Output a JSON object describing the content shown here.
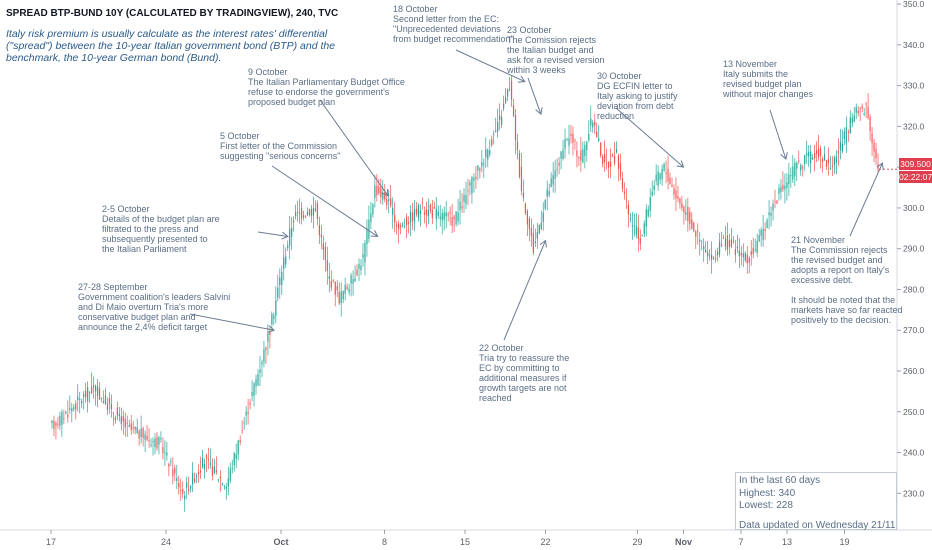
{
  "header": {
    "title": "SPREAD BTP-BUND 10Y (CALCULATED BY TRADINGVIEW), 240, TVC"
  },
  "description": "Italy risk premium is usually calculate as the interest rates' differential (\"spread\") between the 10-year Italian government bond (BTP) and the benchmark, the 10-year German bond (Bund).",
  "price_tag": {
    "price": "309.500",
    "countdown": "02:22:07",
    "color": "#e03e4e"
  },
  "stats": {
    "line1": "In the last 60 days",
    "line2": "Highest: 340",
    "line3": "Lowest: 228",
    "line4": "Data updated on Wednesday 21/11"
  },
  "annotations": [
    {
      "text": "27-28 September\nGovernment coalition's leaders Salvini\nand Di Maio overturn Tria's more\nconservative budget plan and\nannounce the 2,4% deficit target"
    },
    {
      "text": "2-5 October\nDetails of the budget plan are\nfiltrated to the press and\nsubsequently presented to\nthe Italian Parliament"
    },
    {
      "text": "5 October\nFirst letter of the Commission\nsuggesting \"serious concerns\""
    },
    {
      "text": "9 October\nThe Italian Parliamentary Budget Office\nrefuse to endorse the government's\nproposed budget plan"
    },
    {
      "text": "18 October\nSecond letter from the EC:\n\"Unprecedented deviations\nfrom budget recommendation\""
    },
    {
      "text": "23 October\nThe Comission rejects\nthe Italian budget and\nask for a revised version\nwithin 3 weeks"
    },
    {
      "text": "22 October\nTria try to reassure the\nEC by committing to\nadditional measures if\ngrowth targets are not\nreached"
    },
    {
      "text": "30 October\nDG ECFIN letter to\nItaly asking to justify\ndeviation from debt\nreduction"
    },
    {
      "text": "13 November\nItaly submits the\nrevised budget plan\nwithout major changes"
    },
    {
      "text": "21 November\nThe Commission rejects\nthe revised budget and\nadopts a report on Italy's\nexcessive debt.\n\nIt should be noted that the\nmarkets have so far reacted\npositively to the decision."
    }
  ],
  "chart_data": {
    "type": "candlestick",
    "interval": "240",
    "colors": {
      "up": "#26a69a",
      "down": "#ef5350",
      "axis_text": "#5d606b",
      "annotation": "#6b7c93"
    },
    "y_axis": {
      "range": [
        221,
        351
      ],
      "ticks": [
        230,
        240,
        250,
        260,
        270,
        280,
        290,
        300,
        310,
        320,
        330,
        340,
        350
      ]
    },
    "x_axis": {
      "labels": [
        "17",
        "24",
        "Oct",
        "8",
        "15",
        "22",
        "29",
        "Nov",
        "7",
        "13",
        "19"
      ]
    },
    "anchors": [
      {
        "label": "17",
        "x": 0,
        "y": 246
      },
      {
        "x": 4,
        "y": 256
      },
      {
        "x": 7,
        "y": 246
      },
      {
        "label": "24",
        "x": 10,
        "y": 242
      },
      {
        "x": 12,
        "y": 230
      },
      {
        "x": 14,
        "y": 238
      },
      {
        "x": 16,
        "y": 232
      },
      {
        "label": "Oct",
        "x": 20,
        "y": 270
      },
      {
        "x": 21,
        "y": 285
      },
      {
        "x": 22,
        "y": 298
      },
      {
        "x": 24,
        "y": 300
      },
      {
        "x": 25,
        "y": 284
      },
      {
        "x": 26,
        "y": 278
      },
      {
        "x": 27,
        "y": 282
      },
      {
        "x": 28,
        "y": 288
      },
      {
        "label": "8",
        "x": 29,
        "y": 305
      },
      {
        "x": 30,
        "y": 302
      },
      {
        "x": 31,
        "y": 295
      },
      {
        "x": 33,
        "y": 300
      },
      {
        "label": "15",
        "x": 36,
        "y": 297
      },
      {
        "x": 38,
        "y": 308
      },
      {
        "x": 40,
        "y": 320
      },
      {
        "x": 41,
        "y": 330
      },
      {
        "x": 42,
        "y": 305
      },
      {
        "label": "22",
        "x": 43,
        "y": 290
      },
      {
        "x": 44,
        "y": 302
      },
      {
        "x": 45,
        "y": 310
      },
      {
        "x": 46,
        "y": 318
      },
      {
        "x": 47,
        "y": 312
      },
      {
        "x": 48,
        "y": 322
      },
      {
        "x": 49,
        "y": 310
      },
      {
        "x": 50,
        "y": 313
      },
      {
        "label": "29",
        "x": 51,
        "y": 298
      },
      {
        "x": 52,
        "y": 292
      },
      {
        "x": 53,
        "y": 305
      },
      {
        "x": 54,
        "y": 310
      },
      {
        "label": "Nov",
        "x": 55,
        "y": 303
      },
      {
        "x": 56,
        "y": 298
      },
      {
        "x": 57,
        "y": 292
      },
      {
        "x": 58,
        "y": 287
      },
      {
        "x": 59,
        "y": 292
      },
      {
        "label": "7",
        "x": 60,
        "y": 290
      },
      {
        "x": 61,
        "y": 287
      },
      {
        "x": 62,
        "y": 292
      },
      {
        "x": 63,
        "y": 300
      },
      {
        "label": "13",
        "x": 64,
        "y": 305
      },
      {
        "x": 65,
        "y": 310
      },
      {
        "x": 66,
        "y": 312
      },
      {
        "x": 67,
        "y": 314
      },
      {
        "x": 68,
        "y": 310
      },
      {
        "label": "19",
        "x": 69,
        "y": 316
      },
      {
        "x": 70,
        "y": 323
      },
      {
        "x": 71,
        "y": 325
      },
      {
        "x": 72,
        "y": 309.5
      }
    ],
    "stats": {
      "period": "last 60 days",
      "highest": 340,
      "lowest": 228,
      "last": 309.5
    }
  }
}
